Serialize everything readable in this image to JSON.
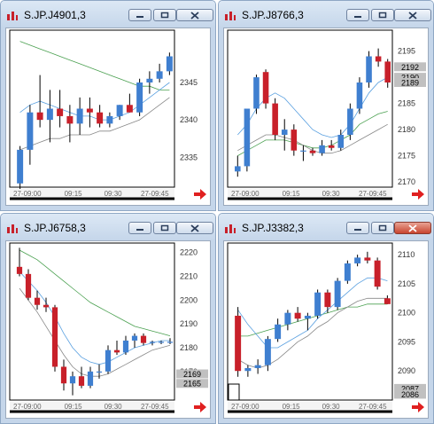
{
  "windows": [
    {
      "title": "S.JP.J4901,3",
      "y_labels": [
        "2345",
        "2340",
        "2335"
      ],
      "x_labels": [
        "27-09:00",
        "09:15",
        "09:30",
        "27-09:45"
      ],
      "price_tags": [],
      "close_style": "normal",
      "chart_data": {
        "type": "candlestick",
        "ylim": [
          2331,
          2352
        ],
        "y_ticks": [
          2345,
          2340,
          2335
        ],
        "x_ticks": [
          "27-09:00",
          "09:15",
          "09:30",
          "27-09:45"
        ],
        "candles": [
          {
            "o": 2331.5,
            "h": 2336.5,
            "l": 2330.5,
            "c": 2336,
            "up": true
          },
          {
            "o": 2336,
            "h": 2342,
            "l": 2334,
            "c": 2341,
            "up": true
          },
          {
            "o": 2341,
            "h": 2346,
            "l": 2339,
            "c": 2340,
            "up": false
          },
          {
            "o": 2340,
            "h": 2344,
            "l": 2337,
            "c": 2341.5,
            "up": true
          },
          {
            "o": 2341.5,
            "h": 2344,
            "l": 2339,
            "c": 2340.5,
            "up": false
          },
          {
            "o": 2340.5,
            "h": 2342,
            "l": 2337,
            "c": 2339.5,
            "up": false
          },
          {
            "o": 2339.5,
            "h": 2343,
            "l": 2338,
            "c": 2341.5,
            "up": true
          },
          {
            "o": 2341.5,
            "h": 2343,
            "l": 2339,
            "c": 2341,
            "up": false
          },
          {
            "o": 2341,
            "h": 2342,
            "l": 2339,
            "c": 2339.5,
            "up": false
          },
          {
            "o": 2339.5,
            "h": 2341,
            "l": 2339,
            "c": 2340.5,
            "up": true
          },
          {
            "o": 2340.5,
            "h": 2342,
            "l": 2340,
            "c": 2342,
            "up": true
          },
          {
            "o": 2342,
            "h": 2343.5,
            "l": 2341,
            "c": 2341,
            "up": false
          },
          {
            "o": 2341,
            "h": 2345.5,
            "l": 2340.5,
            "c": 2345,
            "up": true
          },
          {
            "o": 2345,
            "h": 2346.5,
            "l": 2343.5,
            "c": 2345.5,
            "up": true
          },
          {
            "o": 2345.5,
            "h": 2347.5,
            "l": 2345,
            "c": 2346.5,
            "up": true
          },
          {
            "o": 2346.5,
            "h": 2349,
            "l": 2346,
            "c": 2348.5,
            "up": true
          }
        ],
        "ma_fast": [
          2341,
          2342,
          2342.5,
          2342,
          2341.5,
          2341,
          2340.5,
          2340.5,
          2340,
          2340,
          2340.5,
          2341,
          2342,
          2343,
          2344,
          2345
        ],
        "ma_slow": [
          2350.5,
          2350,
          2349.5,
          2349,
          2348.5,
          2348,
          2347.5,
          2347,
          2346.5,
          2346,
          2345.5,
          2345,
          2344.5,
          2344.5,
          2344,
          2344
        ],
        "ma_low": [
          2336,
          2336.5,
          2337,
          2337.5,
          2337.5,
          2338,
          2338,
          2338,
          2338.5,
          2338.5,
          2339,
          2339.5,
          2340,
          2341,
          2342,
          2343
        ]
      }
    },
    {
      "title": "S.JP.J8766,3",
      "y_labels": [
        "2195",
        "2190",
        "2185",
        "2180",
        "2175",
        "2170"
      ],
      "x_labels": [
        "27-09:00",
        "09:15",
        "09:30",
        "27-09:45"
      ],
      "price_tags": [
        "2192",
        "2190",
        "2189"
      ],
      "close_style": "normal",
      "chart_data": {
        "type": "candlestick",
        "ylim": [
          2169,
          2199
        ],
        "y_ticks": [
          2195,
          2190,
          2185,
          2180,
          2175,
          2170
        ],
        "x_ticks": [
          "27-09:00",
          "09:15",
          "09:30",
          "27-09:45"
        ],
        "candles": [
          {
            "o": 2172,
            "h": 2175,
            "l": 2171,
            "c": 2173,
            "up": true
          },
          {
            "o": 2173,
            "h": 2184,
            "l": 2172,
            "c": 2184,
            "up": true
          },
          {
            "o": 2184,
            "h": 2190.5,
            "l": 2183,
            "c": 2190,
            "up": true
          },
          {
            "o": 2191,
            "h": 2191.5,
            "l": 2184,
            "c": 2185,
            "up": false
          },
          {
            "o": 2185,
            "h": 2186,
            "l": 2178,
            "c": 2179,
            "up": false
          },
          {
            "o": 2179,
            "h": 2182,
            "l": 2176,
            "c": 2180,
            "up": true
          },
          {
            "o": 2180,
            "h": 2181,
            "l": 2175,
            "c": 2176,
            "up": false
          },
          {
            "o": 2176,
            "h": 2177,
            "l": 2174,
            "c": 2176,
            "up": true
          },
          {
            "o": 2176,
            "h": 2176.5,
            "l": 2175,
            "c": 2175.5,
            "up": false
          },
          {
            "o": 2175.5,
            "h": 2178,
            "l": 2175,
            "c": 2177,
            "up": true
          },
          {
            "o": 2177,
            "h": 2178,
            "l": 2176,
            "c": 2176.5,
            "up": false
          },
          {
            "o": 2176.5,
            "h": 2180,
            "l": 2176,
            "c": 2179,
            "up": true
          },
          {
            "o": 2179,
            "h": 2185,
            "l": 2178,
            "c": 2184,
            "up": true
          },
          {
            "o": 2184,
            "h": 2190,
            "l": 2183,
            "c": 2189,
            "up": true
          },
          {
            "o": 2189,
            "h": 2195,
            "l": 2188,
            "c": 2194,
            "up": true
          },
          {
            "o": 2194,
            "h": 2195.5,
            "l": 2192,
            "c": 2193,
            "up": false
          },
          {
            "o": 2193,
            "h": 2193.5,
            "l": 2188,
            "c": 2189,
            "up": false
          }
        ],
        "ma_fast": [
          2179,
          2181,
          2184,
          2186,
          2187,
          2186,
          2184,
          2182,
          2180,
          2179,
          2178.5,
          2179,
          2181,
          2184,
          2187,
          2189,
          2190
        ],
        "ma_slow": [
          2175,
          2176,
          2177,
          2178,
          2178,
          2178,
          2177.5,
          2177,
          2176.5,
          2176.5,
          2177,
          2178,
          2179,
          2181,
          2182,
          2183,
          2183.5
        ],
        "ma_low": [
          2176,
          2177,
          2178,
          2179,
          2179,
          2178.5,
          2178,
          2177,
          2176,
          2175.5,
          2175.5,
          2176,
          2177,
          2178,
          2179,
          2180,
          2181
        ]
      }
    },
    {
      "title": "S.JP.J6758,3",
      "y_labels": [
        "2220",
        "2210",
        "2200",
        "2190",
        "2180",
        "2170"
      ],
      "x_labels": [
        "27-09:00",
        "09:15",
        "09:30",
        "27-09:45"
      ],
      "price_tags": [
        "2169",
        "2165"
      ],
      "close_style": "normal",
      "chart_data": {
        "type": "candlestick",
        "ylim": [
          2158,
          2224
        ],
        "y_ticks": [
          2220,
          2210,
          2200,
          2190,
          2180,
          2170
        ],
        "x_ticks": [
          "27-09:00",
          "09:15",
          "09:30",
          "27-09:45"
        ],
        "candles": [
          {
            "o": 2214,
            "h": 2222,
            "l": 2210,
            "c": 2211,
            "up": false
          },
          {
            "o": 2211,
            "h": 2213,
            "l": 2200,
            "c": 2201,
            "up": false
          },
          {
            "o": 2201,
            "h": 2204,
            "l": 2196,
            "c": 2198,
            "up": false
          },
          {
            "o": 2198,
            "h": 2201,
            "l": 2195,
            "c": 2197,
            "up": false
          },
          {
            "o": 2197,
            "h": 2198,
            "l": 2170,
            "c": 2172,
            "up": false
          },
          {
            "o": 2172,
            "h": 2175,
            "l": 2162,
            "c": 2165,
            "up": false
          },
          {
            "o": 2165,
            "h": 2170,
            "l": 2160,
            "c": 2168,
            "up": true
          },
          {
            "o": 2168,
            "h": 2172,
            "l": 2163,
            "c": 2164,
            "up": false
          },
          {
            "o": 2164,
            "h": 2172,
            "l": 2163,
            "c": 2170,
            "up": true
          },
          {
            "o": 2170,
            "h": 2173,
            "l": 2167,
            "c": 2170,
            "up": true
          },
          {
            "o": 2170,
            "h": 2181,
            "l": 2169,
            "c": 2179,
            "up": true
          },
          {
            "o": 2179,
            "h": 2183,
            "l": 2177,
            "c": 2178,
            "up": false
          },
          {
            "o": 2178,
            "h": 2185,
            "l": 2177,
            "c": 2183,
            "up": true
          },
          {
            "o": 2183,
            "h": 2186,
            "l": 2180,
            "c": 2185,
            "up": true
          },
          {
            "o": 2185,
            "h": 2186,
            "l": 2181,
            "c": 2182,
            "up": false
          },
          {
            "o": 2182,
            "h": 2183,
            "l": 2181,
            "c": 2182.5,
            "up": true
          },
          {
            "o": 2182.5,
            "h": 2183,
            "l": 2181.5,
            "c": 2182.5,
            "up": true
          },
          {
            "o": 2182.5,
            "h": 2184,
            "l": 2181.5,
            "c": 2182.5,
            "up": true
          }
        ],
        "ma_fast": [
          2212,
          2208,
          2204,
          2199,
          2193,
          2186,
          2180,
          2176,
          2174,
          2173,
          2174,
          2176,
          2178,
          2180,
          2181,
          2182,
          2183,
          2183
        ],
        "ma_slow": [
          2221,
          2219,
          2217,
          2214,
          2211,
          2208,
          2205,
          2202,
          2199,
          2197,
          2195,
          2193,
          2191,
          2189,
          2188,
          2187,
          2186,
          2185
        ],
        "ma_low": [
          2205,
          2200,
          2195,
          2189,
          2183,
          2177,
          2172,
          2169,
          2168,
          2168,
          2169,
          2171,
          2173,
          2175,
          2177,
          2179,
          2180,
          2181
        ]
      }
    },
    {
      "title": "S.JP.J3382,3",
      "y_labels": [
        "2110",
        "2105",
        "2100",
        "2095",
        "2090"
      ],
      "x_labels": [
        "27-09:00",
        "09:15",
        "09:30",
        "27-09:45"
      ],
      "price_tags": [
        "2087",
        "2086"
      ],
      "close_style": "red",
      "chart_data": {
        "type": "candlestick",
        "ylim": [
          2085,
          2112
        ],
        "y_ticks": [
          2110,
          2105,
          2100,
          2095,
          2090
        ],
        "x_ticks": [
          "27-09:00",
          "09:15",
          "09:30",
          "27-09:45"
        ],
        "candles": [
          {
            "o": 2099.5,
            "h": 2101,
            "l": 2089,
            "c": 2090,
            "up": false
          },
          {
            "o": 2090,
            "h": 2091,
            "l": 2089,
            "c": 2090.5,
            "up": true
          },
          {
            "o": 2090.5,
            "h": 2092,
            "l": 2089.5,
            "c": 2091,
            "up": true
          },
          {
            "o": 2091,
            "h": 2096,
            "l": 2090,
            "c": 2095.5,
            "up": true
          },
          {
            "o": 2095.5,
            "h": 2099,
            "l": 2095,
            "c": 2098,
            "up": true
          },
          {
            "o": 2098,
            "h": 2100.5,
            "l": 2097,
            "c": 2100,
            "up": true
          },
          {
            "o": 2100,
            "h": 2101,
            "l": 2098.5,
            "c": 2099,
            "up": false
          },
          {
            "o": 2099,
            "h": 2100,
            "l": 2097,
            "c": 2099.5,
            "up": true
          },
          {
            "o": 2099.5,
            "h": 2104,
            "l": 2099,
            "c": 2103.5,
            "up": true
          },
          {
            "o": 2103.5,
            "h": 2104,
            "l": 2100,
            "c": 2101,
            "up": false
          },
          {
            "o": 2101,
            "h": 2106,
            "l": 2100.5,
            "c": 2105.5,
            "up": true
          },
          {
            "o": 2105.5,
            "h": 2109,
            "l": 2105,
            "c": 2108.5,
            "up": true
          },
          {
            "o": 2108.5,
            "h": 2110,
            "l": 2108,
            "c": 2109.5,
            "up": true
          },
          {
            "o": 2109.5,
            "h": 2110.5,
            "l": 2108.5,
            "c": 2109,
            "up": false
          },
          {
            "o": 2109,
            "h": 2109.5,
            "l": 2104,
            "c": 2104.5,
            "up": false
          },
          {
            "o": 2102.5,
            "h": 2103,
            "l": 2101.5,
            "c": 2101.5,
            "up": false
          }
        ],
        "ma_fast": [
          2100.5,
          2098,
          2096,
          2094,
          2094,
          2095,
          2096,
          2097,
          2099,
          2100.5,
          2102,
          2103.5,
          2105,
          2106,
          2106,
          2105.5
        ],
        "ma_slow": [
          2096,
          2096,
          2096.5,
          2097,
          2097.5,
          2098,
          2098.5,
          2099,
          2099.5,
          2100,
          2100.5,
          2101,
          2101,
          2101.5,
          2101.5,
          2101.5
        ],
        "ma_low": [
          2092,
          2091,
          2090.5,
          2091,
          2092,
          2093.5,
          2095,
          2096,
          2097.5,
          2098.5,
          2100,
          2101,
          2102,
          2102.5,
          2102.5,
          2102.5
        ]
      }
    }
  ],
  "colors": {
    "up": "#3f7fd0",
    "down": "#c8202a",
    "ma_fast": "#5aa0e0",
    "ma_slow": "#4aa050",
    "ma_low": "#888888",
    "tag": "#c0c0c0",
    "arrow": "#e02020"
  }
}
